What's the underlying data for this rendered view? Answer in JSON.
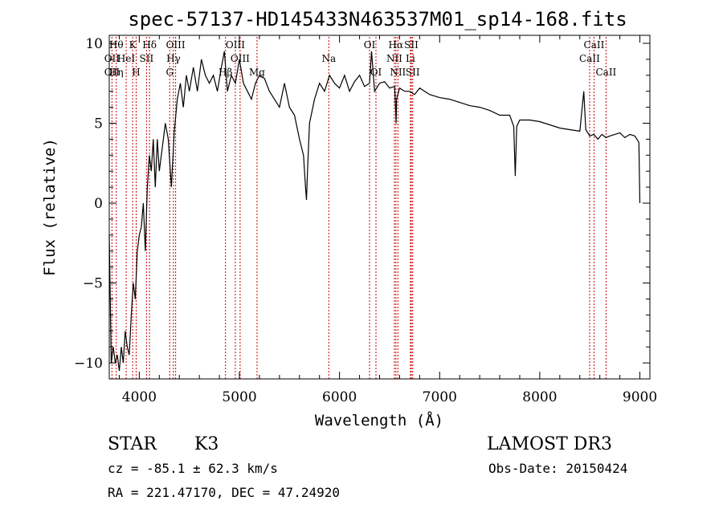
{
  "chart_data": {
    "type": "line",
    "title": "spec-57137-HD145433N463537M01_sp14-168.fits",
    "xlabel": "Wavelength (Å)",
    "ylabel": "Flux (relative)",
    "xlim": [
      3700,
      9100
    ],
    "ylim": [
      -11,
      10.5
    ],
    "xticks": [
      4000,
      5000,
      6000,
      7000,
      8000,
      9000
    ],
    "yticks": [
      -10,
      -5,
      0,
      5,
      10
    ],
    "grid": false,
    "series": [
      {
        "x": [
          3700,
          3720,
          3740,
          3760,
          3780,
          3800,
          3820,
          3840,
          3860,
          3880,
          3900,
          3920,
          3940,
          3960,
          3980,
          4000,
          4020,
          4040,
          4060,
          4080,
          4100,
          4120,
          4140,
          4160,
          4180,
          4200,
          4230,
          4260,
          4290,
          4320,
          4350,
          4380,
          4410,
          4440,
          4470,
          4500,
          4540,
          4580,
          4620,
          4660,
          4700,
          4740,
          4780,
          4820,
          4850,
          4880,
          4920,
          4960,
          5000,
          5040,
          5080,
          5120,
          5160,
          5200,
          5250,
          5300,
          5350,
          5400,
          5450,
          5500,
          5550,
          5600,
          5640,
          5660,
          5670,
          5680,
          5700,
          5750,
          5800,
          5850,
          5900,
          5950,
          6000,
          6050,
          6100,
          6150,
          6200,
          6250,
          6300,
          6320,
          6350,
          6400,
          6450,
          6500,
          6550,
          6560,
          6565,
          6570,
          6600,
          6650,
          6700,
          6750,
          6800,
          6900,
          7000,
          7100,
          7200,
          7300,
          7400,
          7500,
          7600,
          7700,
          7740,
          7755,
          7770,
          7800,
          7900,
          8000,
          8100,
          8200,
          8300,
          8400,
          8440,
          8460,
          8480,
          8500,
          8540,
          8580,
          8620,
          8660,
          8700,
          8750,
          8800,
          8850,
          8900,
          8950,
          8990,
          9000
        ],
        "y": [
          -2,
          -10,
          -9,
          -10,
          -9.5,
          -10.5,
          -9,
          -10,
          -8,
          -9,
          -9.5,
          -7,
          -5,
          -6,
          -3,
          -2,
          -1.5,
          0,
          -3,
          1,
          3,
          2,
          4,
          1,
          4,
          2,
          3.5,
          5,
          4,
          1,
          4.5,
          6.5,
          7.5,
          6,
          8,
          7,
          8.5,
          7,
          9,
          8,
          7.5,
          8,
          7,
          8.5,
          9.5,
          7,
          8,
          7.5,
          9,
          7.5,
          7,
          6.5,
          7.5,
          8,
          7.8,
          7,
          6.5,
          6,
          7.5,
          6,
          5.5,
          4,
          3,
          1,
          0.2,
          2,
          5,
          6.5,
          7.5,
          7,
          8,
          7.5,
          7.2,
          8,
          7,
          7.6,
          8,
          7.3,
          7.5,
          9.5,
          7,
          7.5,
          7.6,
          7.2,
          7.3,
          6,
          5,
          6.5,
          7.2,
          7,
          7,
          6.8,
          7.2,
          6.8,
          6.6,
          6.5,
          6.3,
          6.1,
          6,
          5.8,
          5.5,
          5.5,
          4.8,
          1.7,
          4.8,
          5.2,
          5.2,
          5.1,
          4.9,
          4.7,
          4.6,
          4.5,
          7,
          4.6,
          4.4,
          4.2,
          4.3,
          4,
          4.3,
          4.1,
          4.2,
          4.3,
          4.4,
          4.1,
          4.3,
          4.2,
          3.8,
          0
        ]
      }
    ],
    "line_markers": [
      {
        "wave": 3727,
        "labels": [
          "OII",
          "OII"
        ],
        "rows": [
          1,
          2
        ]
      },
      {
        "wave": 3770,
        "labels": [
          "Hθ",
          "Hη"
        ],
        "rows": [
          0,
          2
        ]
      },
      {
        "wave": 3869,
        "labels": [
          "HeI",
          ""
        ],
        "rows": [
          1,
          1
        ]
      },
      {
        "wave": 3934,
        "labels": [
          "K"
        ],
        "rows": [
          0
        ]
      },
      {
        "wave": 3969,
        "labels": [
          "H"
        ],
        "rows": [
          2
        ]
      },
      {
        "wave": 4072,
        "labels": [
          "SII"
        ],
        "rows": [
          1
        ]
      },
      {
        "wave": 4102,
        "labels": [
          "Hδ"
        ],
        "rows": [
          0
        ]
      },
      {
        "wave": 4304,
        "labels": [
          "G"
        ],
        "rows": [
          2
        ]
      },
      {
        "wave": 4341,
        "labels": [
          "Hγ"
        ],
        "rows": [
          1
        ]
      },
      {
        "wave": 4363,
        "labels": [
          "OIII"
        ],
        "rows": [
          0
        ]
      },
      {
        "wave": 4861,
        "labels": [
          "Hβ"
        ],
        "rows": [
          2
        ]
      },
      {
        "wave": 4959,
        "labels": [
          "OIII"
        ],
        "rows": [
          0
        ]
      },
      {
        "wave": 5007,
        "labels": [
          "OIII"
        ],
        "rows": [
          1
        ]
      },
      {
        "wave": 5176,
        "labels": [
          "Mg"
        ],
        "rows": [
          2
        ]
      },
      {
        "wave": 5893,
        "labels": [
          "Na"
        ],
        "rows": [
          1
        ]
      },
      {
        "wave": 6300,
        "labels": [
          "OI"
        ],
        "rows": [
          0
        ]
      },
      {
        "wave": 6364,
        "labels": [
          "OI"
        ],
        "rows": [
          2
        ]
      },
      {
        "wave": 6548,
        "labels": [
          "NII"
        ],
        "rows": [
          1
        ]
      },
      {
        "wave": 6563,
        "labels": [
          "Hα"
        ],
        "rows": [
          0
        ]
      },
      {
        "wave": 6583,
        "labels": [
          "NII"
        ],
        "rows": [
          2
        ]
      },
      {
        "wave": 6708,
        "labels": [
          "Li"
        ],
        "rows": [
          1
        ]
      },
      {
        "wave": 6717,
        "labels": [
          "SII"
        ],
        "rows": [
          0
        ]
      },
      {
        "wave": 6731,
        "labels": [
          "SII"
        ],
        "rows": [
          2
        ]
      },
      {
        "wave": 8498,
        "labels": [
          "CaII"
        ],
        "rows": [
          1
        ]
      },
      {
        "wave": 8542,
        "labels": [
          "CaII"
        ],
        "rows": [
          0
        ]
      },
      {
        "wave": 8662,
        "labels": [
          "CaII"
        ],
        "rows": [
          2
        ]
      }
    ]
  },
  "info": {
    "object_class": "STAR",
    "subclass": "K3",
    "survey": "LAMOST DR3",
    "redshift_line": "cz = -85.1 ± 62.3 km/s",
    "obs_date": "Obs-Date: 20150424",
    "coords": "RA = 221.47170, DEC =  47.24920"
  },
  "colors": {
    "spectrum": "#000000",
    "marker_lines": "#cc0000",
    "axes": "#000000",
    "background": "#ffffff"
  }
}
